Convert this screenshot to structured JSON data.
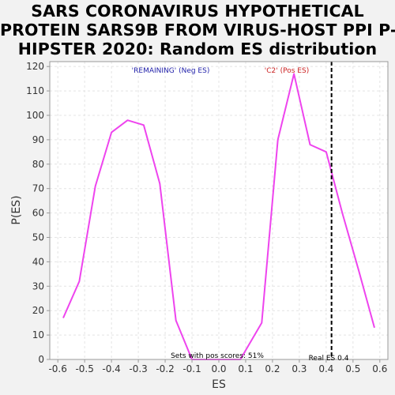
{
  "chart_data": {
    "type": "line",
    "title_lines": [
      "SARS CORONAVIRUS HYPOTHETICAL",
      "PROTEIN SARS9B FROM VIRUS-HOST PPI P-",
      "HIPSTER 2020: Random ES distribution"
    ],
    "xlabel": "ES",
    "ylabel": "P(ES)",
    "xlim": [
      -0.63,
      0.63
    ],
    "ylim": [
      0,
      122
    ],
    "xticks": [
      -0.6,
      -0.5,
      -0.4,
      -0.3,
      -0.2,
      -0.1,
      0.0,
      0.1,
      0.2,
      0.3,
      0.4,
      0.5,
      0.6
    ],
    "xtick_labels": [
      "-0.6",
      "-0.5",
      "-0.4",
      "-0.3",
      "-0.2",
      "-0.1",
      "0.0",
      "0.1",
      "0.2",
      "0.3",
      "0.4",
      "0.5",
      "0.6"
    ],
    "yticks": [
      0,
      10,
      20,
      30,
      40,
      50,
      60,
      70,
      80,
      90,
      100,
      110,
      120
    ],
    "ytick_labels": [
      "0",
      "10",
      "20",
      "30",
      "40",
      "50",
      "60",
      "70",
      "80",
      "90",
      "100",
      "110",
      "120"
    ],
    "grid": true,
    "series": [
      {
        "color": "#ee44ee",
        "x": [
          -0.58,
          -0.52,
          -0.46,
          -0.4,
          -0.34,
          -0.28,
          -0.22,
          -0.16,
          -0.1,
          -0.04,
          0.02,
          0.08,
          0.16,
          0.22,
          0.28,
          0.34,
          0.4,
          0.46,
          0.52,
          0.58
        ],
        "y": [
          17,
          32,
          71,
          93,
          98,
          96,
          72,
          16,
          0,
          0,
          0,
          0,
          15,
          90,
          117,
          88,
          85,
          60,
          37,
          13
        ]
      }
    ],
    "real_es": 0.42,
    "annotations": {
      "neg_label": "'REMAINING' (Neg ES)",
      "neg_color": "#2222aa",
      "pos_label": "'C2' (Pos ES)",
      "pos_color": "#cc2222",
      "sets_label": "Sets with pos scores: 51%",
      "real_es_label": "Real ES 0.4"
    }
  }
}
